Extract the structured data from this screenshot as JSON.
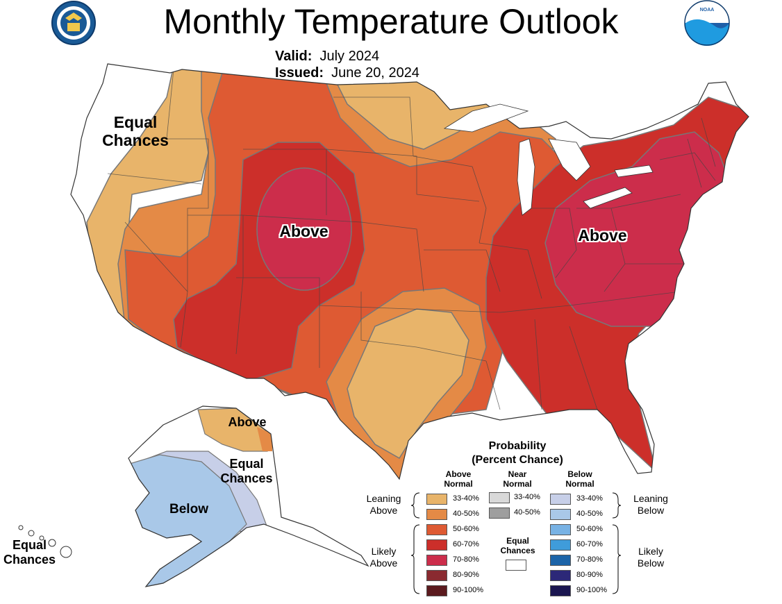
{
  "title": "Monthly Temperature Outlook",
  "valid_label": "Valid:",
  "valid_value": "July 2024",
  "issued_label": "Issued:",
  "issued_value": "June 20, 2024",
  "colors": {
    "above_33_40": "#E8B46A",
    "above_40_50": "#E48A46",
    "above_50_60": "#DE5A33",
    "above_60_70": "#CC2F2A",
    "above_70_80": "#CC2D4B",
    "above_80_90": "#8A2A30",
    "above_90_100": "#5B1A1E",
    "below_33_40": "#C7CFE8",
    "below_40_50": "#A9C8E8",
    "below_50_60": "#78B2E4",
    "below_60_70": "#3F9CDA",
    "below_70_80": "#1C64A8",
    "below_80_90": "#2C2878",
    "below_90_100": "#1B1650",
    "near_33_40": "#D9D9D9",
    "near_40_50": "#9E9E9E"
  },
  "map_labels": {
    "west_equal": "Equal Chances",
    "central_above": "Above",
    "east_above": "Above",
    "ak_north_above": "Above",
    "ak_equal": "Equal Chances",
    "ak_below": "Below",
    "hawaii_equal": "Equal Chances"
  },
  "legend": {
    "title": "Probability",
    "subtitle": "(Percent Chance)",
    "above_header": "Above Normal",
    "near_header": "Near Normal",
    "below_header": "Below Normal",
    "leaning_above": "Leaning Above",
    "likely_above": "Likely Above",
    "leaning_below": "Leaning Below",
    "likely_below": "Likely Below",
    "equal_chances": "Equal Chances",
    "above_rows": [
      "33-40%",
      "40-50%",
      "50-60%",
      "60-70%",
      "70-80%",
      "80-90%",
      "90-100%"
    ],
    "near_rows": [
      "33-40%",
      "40-50%"
    ],
    "below_rows": [
      "33-40%",
      "40-50%",
      "50-60%",
      "60-70%",
      "70-80%",
      "80-90%",
      "90-100%"
    ]
  },
  "logos": {
    "left": "Department of Commerce seal",
    "right": "NOAA"
  }
}
